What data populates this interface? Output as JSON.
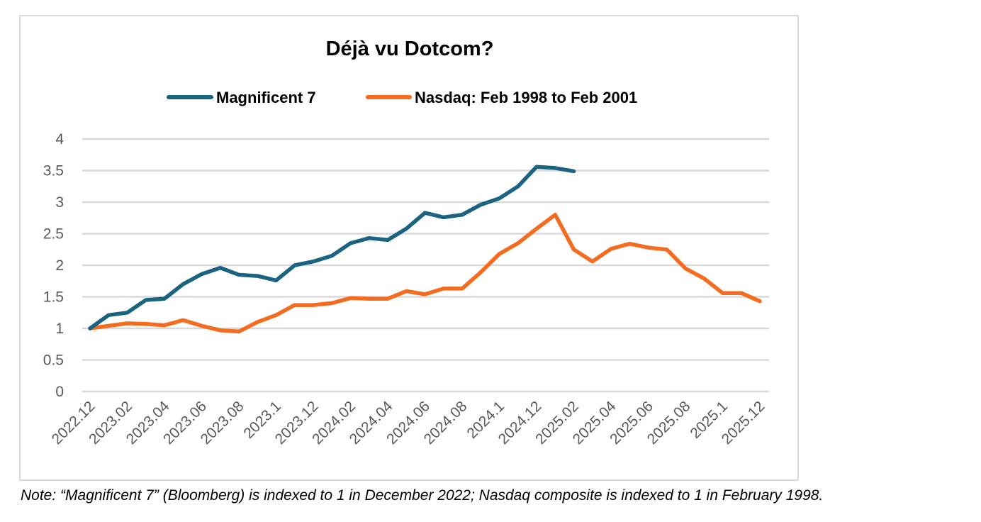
{
  "chart_data": {
    "type": "line",
    "title": "Déjà vu Dotcom?",
    "xlabel": "",
    "ylabel": "",
    "ylim": [
      0,
      4
    ],
    "yticks": [
      "0",
      "0.5",
      "1",
      "1.5",
      "2",
      "2.5",
      "3",
      "3.5",
      "4"
    ],
    "grid": true,
    "legend_position": "top",
    "x_tick_labels": [
      "2022.12",
      "2023.02",
      "2023.04",
      "2023.06",
      "2023.08",
      "2023.1",
      "2023.12",
      "2024.02",
      "2024.04",
      "2024.06",
      "2024.08",
      "2024.1",
      "2024.12",
      "2025.02",
      "2025.04",
      "2025.06",
      "2025.08",
      "2025.1",
      "2025.12"
    ],
    "series": [
      {
        "name": "Magnificent 7",
        "color": "#1a6381",
        "values": [
          1.0,
          1.21,
          1.25,
          1.45,
          1.47,
          1.7,
          1.86,
          1.96,
          1.85,
          1.83,
          1.76,
          2.0,
          2.06,
          2.15,
          2.35,
          2.43,
          2.4,
          2.58,
          2.83,
          2.76,
          2.8,
          2.96,
          3.06,
          3.25,
          3.56,
          3.54,
          3.49
        ]
      },
      {
        "name": "Nasdaq: Feb 1998 to Feb 2001",
        "color": "#f46c1f",
        "values": [
          1.0,
          1.04,
          1.08,
          1.07,
          1.05,
          1.13,
          1.04,
          0.97,
          0.95,
          1.1,
          1.21,
          1.37,
          1.37,
          1.4,
          1.48,
          1.47,
          1.47,
          1.59,
          1.54,
          1.63,
          1.63,
          1.89,
          2.18,
          2.35,
          2.58,
          2.8,
          2.25,
          2.06,
          2.26,
          2.34,
          2.28,
          2.25,
          1.95,
          1.79,
          1.56,
          1.56,
          1.43
        ]
      }
    ]
  },
  "note": "Note: “Magnificent 7” (Bloomberg) is indexed to 1 in December 2022; Nasdaq composite is indexed to 1 in February 1998."
}
